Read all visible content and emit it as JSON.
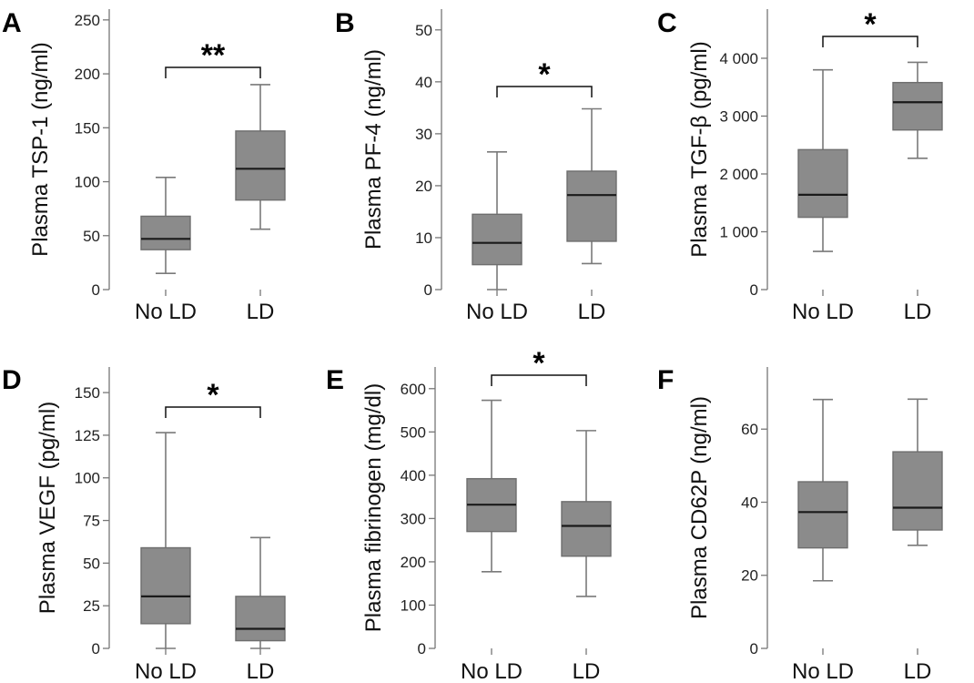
{
  "chart_data": [
    {
      "type": "boxplot",
      "panel_label": "A",
      "ylabel": "Plasma TSP-1 (ng/ml)",
      "ylim": [
        0,
        260
      ],
      "yticks": [
        0,
        50,
        100,
        150,
        200,
        250
      ],
      "ytick_labels": [
        "0",
        "50",
        "100",
        "150",
        "200",
        "250"
      ],
      "categories": [
        "No LD",
        "LD"
      ],
      "boxes": [
        {
          "category": "No LD",
          "min": 15,
          "q1": 37,
          "median": 47,
          "q3": 68,
          "max": 104
        },
        {
          "category": "LD",
          "min": 56,
          "q1": 83,
          "median": 112,
          "q3": 147,
          "max": 190
        }
      ],
      "significance": "**"
    },
    {
      "type": "boxplot",
      "panel_label": "B",
      "ylabel": "Plasma  PF-4 (ng/ml)",
      "ylim": [
        0,
        54
      ],
      "yticks": [
        0,
        10,
        20,
        30,
        40,
        50
      ],
      "ytick_labels": [
        "0",
        "10",
        "20",
        "30",
        "40",
        "50"
      ],
      "categories": [
        "No LD",
        "LD"
      ],
      "boxes": [
        {
          "category": "No LD",
          "min": 0,
          "q1": 4.8,
          "median": 9,
          "q3": 14.5,
          "max": 26.5
        },
        {
          "category": "LD",
          "min": 5,
          "q1": 9.3,
          "median": 18.2,
          "q3": 22.8,
          "max": 34.8
        }
      ],
      "significance": "*"
    },
    {
      "type": "boxplot",
      "panel_label": "C",
      "ylabel": "Plasma TGF-β (pg/ml)",
      "ylim": [
        0,
        4850
      ],
      "yticks": [
        0,
        1000,
        2000,
        3000,
        4000
      ],
      "ytick_labels": [
        "0",
        "1 000",
        "2 000",
        "3 000",
        "4 000"
      ],
      "categories": [
        "No LD",
        "LD"
      ],
      "boxes": [
        {
          "category": "No LD",
          "min": 660,
          "q1": 1250,
          "median": 1640,
          "q3": 2420,
          "max": 3800
        },
        {
          "category": "LD",
          "min": 2270,
          "q1": 2760,
          "median": 3240,
          "q3": 3580,
          "max": 3930
        }
      ],
      "significance": "*"
    },
    {
      "type": "boxplot",
      "panel_label": "D",
      "ylabel": "Plasma VEGF (pg/ml)",
      "ylim": [
        0,
        165
      ],
      "yticks": [
        0,
        25,
        50,
        75,
        100,
        125,
        150
      ],
      "ytick_labels": [
        "0",
        "25",
        "50",
        "75",
        "100",
        "125",
        "150"
      ],
      "categories": [
        "No LD",
        "LD"
      ],
      "boxes": [
        {
          "category": "No LD",
          "min": 0,
          "q1": 14.5,
          "median": 30.5,
          "q3": 59,
          "max": 126.5
        },
        {
          "category": "LD",
          "min": 0,
          "q1": 4.5,
          "median": 11.5,
          "q3": 30.5,
          "max": 65
        }
      ],
      "significance": "*"
    },
    {
      "type": "boxplot",
      "panel_label": "E",
      "ylabel": "Plasma fibrinogen (mg/dl)",
      "ylim": [
        0,
        650
      ],
      "yticks": [
        0,
        100,
        200,
        300,
        400,
        500,
        600
      ],
      "ytick_labels": [
        "0",
        "100",
        "200",
        "300",
        "400",
        "500",
        "600"
      ],
      "categories": [
        "No LD",
        "LD"
      ],
      "boxes": [
        {
          "category": "No LD",
          "min": 177,
          "q1": 270,
          "median": 332,
          "q3": 392,
          "max": 573
        },
        {
          "category": "LD",
          "min": 120,
          "q1": 213,
          "median": 283,
          "q3": 339,
          "max": 503
        }
      ],
      "significance": "*"
    },
    {
      "type": "boxplot",
      "panel_label": "F",
      "ylabel": "Plasma CD62P (ng/ml)",
      "ylim": [
        0,
        77
      ],
      "yticks": [
        0,
        20,
        40,
        60
      ],
      "ytick_labels": [
        "0",
        "20",
        "40",
        "60"
      ],
      "categories": [
        "No LD",
        "LD"
      ],
      "boxes": [
        {
          "category": "No LD",
          "min": 18.5,
          "q1": 27.5,
          "median": 37.3,
          "q3": 45.6,
          "max": 68.1
        },
        {
          "category": "LD",
          "min": 28.2,
          "q1": 32.4,
          "median": 38.5,
          "q3": 53.8,
          "max": 68.2
        }
      ],
      "significance": ""
    }
  ]
}
